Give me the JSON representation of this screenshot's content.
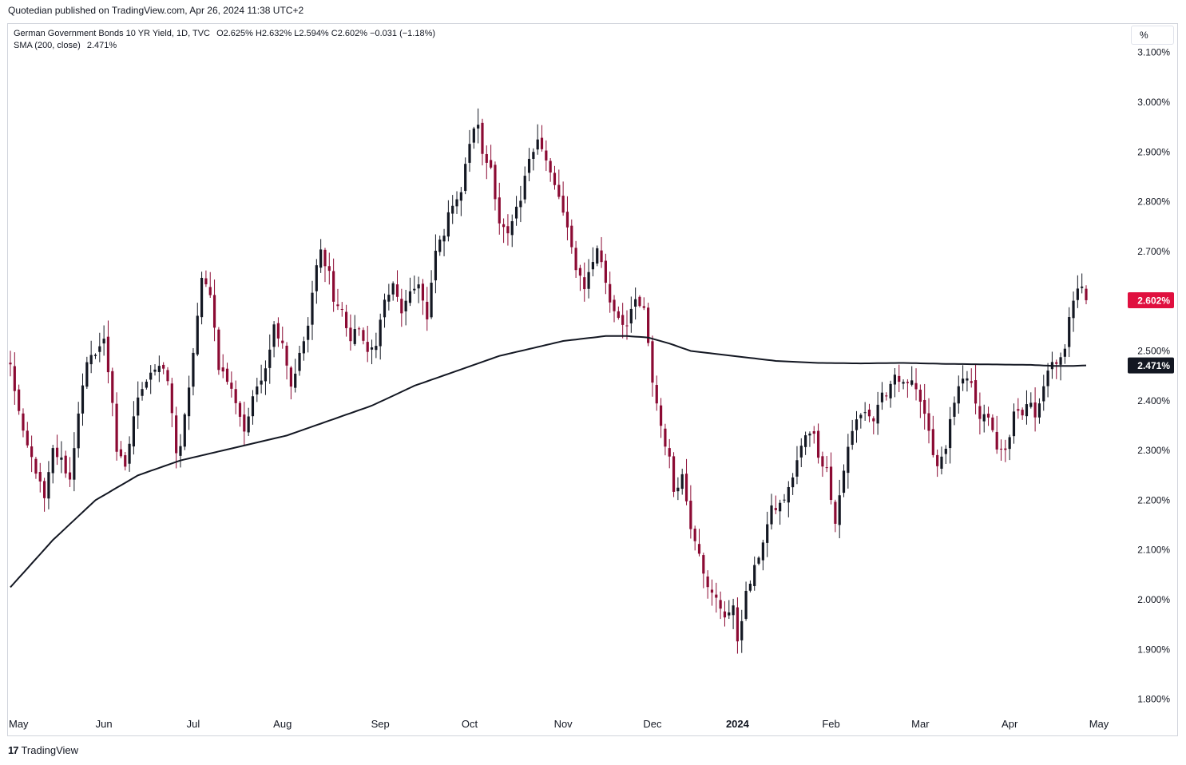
{
  "header": {
    "published_by": "Quotedian published on TradingView.com, Apr 26, 2024 11:38 UTC+2"
  },
  "legend": {
    "symbol": "German Government Bonds 10 YR Yield, 1D, TVC",
    "ohlc": "O2.625% H2.632% L2.594% C2.602% −0.031 (−1.18%)",
    "indicator": "SMA (200, close)",
    "indicator_value": "2.471%"
  },
  "unit_label": "%",
  "footer": {
    "logo_text": "TradingView",
    "logo_mark": "17"
  },
  "colors": {
    "candle_down": "#8b0a33",
    "candle_up": "#131722",
    "sma": "#131722",
    "last_price_badge": "#e0103f",
    "sma_badge": "#131722"
  },
  "chart_data": {
    "type": "candlestick",
    "title": "German Government Bonds 10 YR Yield, 1D, TVC",
    "ylabel": "%",
    "ylim": [
      1.75,
      3.1
    ],
    "y_ticks": [
      "3.100%",
      "3.000%",
      "2.900%",
      "2.800%",
      "2.700%",
      "2.500%",
      "2.400%",
      "2.300%",
      "2.200%",
      "2.100%",
      "2.000%",
      "1.900%",
      "1.800%"
    ],
    "y_tick_values": [
      3.1,
      3.0,
      2.9,
      2.8,
      2.7,
      2.5,
      2.4,
      2.3,
      2.2,
      2.1,
      2.0,
      1.9,
      1.8
    ],
    "x_ticks": [
      {
        "label": "May",
        "bar": 0
      },
      {
        "label": "Jun",
        "bar": 22
      },
      {
        "label": "Jul",
        "bar": 43
      },
      {
        "label": "Aug",
        "bar": 64
      },
      {
        "label": "Sep",
        "bar": 87
      },
      {
        "label": "Oct",
        "bar": 108
      },
      {
        "label": "Nov",
        "bar": 130
      },
      {
        "label": "Dec",
        "bar": 151
      },
      {
        "label": "2024",
        "bar": 171,
        "bold": true
      },
      {
        "label": "Feb",
        "bar": 193
      },
      {
        "label": "Mar",
        "bar": 214
      },
      {
        "label": "Apr",
        "bar": 235
      },
      {
        "label": "May",
        "bar": 256
      }
    ],
    "close_anchors": [
      [
        0,
        2.47
      ],
      [
        3,
        2.33
      ],
      [
        6,
        2.26
      ],
      [
        8,
        2.2
      ],
      [
        10,
        2.3
      ],
      [
        12,
        2.28
      ],
      [
        14,
        2.24
      ],
      [
        16,
        2.38
      ],
      [
        18,
        2.47
      ],
      [
        20,
        2.5
      ],
      [
        22,
        2.52
      ],
      [
        24,
        2.4
      ],
      [
        25,
        2.3
      ],
      [
        27,
        2.26
      ],
      [
        29,
        2.37
      ],
      [
        31,
        2.43
      ],
      [
        33,
        2.46
      ],
      [
        35,
        2.47
      ],
      [
        37,
        2.44
      ],
      [
        39,
        2.3
      ],
      [
        40,
        2.31
      ],
      [
        42,
        2.42
      ],
      [
        43,
        2.5
      ],
      [
        45,
        2.64
      ],
      [
        47,
        2.62
      ],
      [
        49,
        2.47
      ],
      [
        51,
        2.44
      ],
      [
        53,
        2.4
      ],
      [
        55,
        2.34
      ],
      [
        57,
        2.4
      ],
      [
        58,
        2.43
      ],
      [
        60,
        2.47
      ],
      [
        62,
        2.55
      ],
      [
        64,
        2.52
      ],
      [
        66,
        2.43
      ],
      [
        68,
        2.49
      ],
      [
        70,
        2.55
      ],
      [
        72,
        2.67
      ],
      [
        73,
        2.7
      ],
      [
        75,
        2.66
      ],
      [
        76,
        2.6
      ],
      [
        78,
        2.58
      ],
      [
        80,
        2.52
      ],
      [
        82,
        2.55
      ],
      [
        84,
        2.49
      ],
      [
        86,
        2.52
      ],
      [
        88,
        2.6
      ],
      [
        90,
        2.63
      ],
      [
        92,
        2.58
      ],
      [
        94,
        2.61
      ],
      [
        96,
        2.64
      ],
      [
        98,
        2.56
      ],
      [
        100,
        2.7
      ],
      [
        102,
        2.74
      ],
      [
        104,
        2.8
      ],
      [
        106,
        2.82
      ],
      [
        108,
        2.92
      ],
      [
        110,
        2.96
      ],
      [
        111,
        2.89
      ],
      [
        113,
        2.87
      ],
      [
        115,
        2.76
      ],
      [
        117,
        2.73
      ],
      [
        119,
        2.78
      ],
      [
        120,
        2.8
      ],
      [
        122,
        2.89
      ],
      [
        124,
        2.93
      ],
      [
        126,
        2.88
      ],
      [
        128,
        2.83
      ],
      [
        129,
        2.81
      ],
      [
        131,
        2.74
      ],
      [
        133,
        2.67
      ],
      [
        135,
        2.63
      ],
      [
        137,
        2.68
      ],
      [
        138,
        2.71
      ],
      [
        140,
        2.64
      ],
      [
        141,
        2.6
      ],
      [
        143,
        2.57
      ],
      [
        145,
        2.55
      ],
      [
        147,
        2.6
      ],
      [
        149,
        2.58
      ],
      [
        150,
        2.51
      ],
      [
        151,
        2.44
      ],
      [
        153,
        2.35
      ],
      [
        155,
        2.28
      ],
      [
        156,
        2.22
      ],
      [
        158,
        2.25
      ],
      [
        160,
        2.15
      ],
      [
        162,
        2.1
      ],
      [
        164,
        2.02
      ],
      [
        166,
        2.0
      ],
      [
        168,
        1.97
      ],
      [
        170,
        1.98
      ],
      [
        171,
        1.92
      ],
      [
        173,
        2.01
      ],
      [
        175,
        2.06
      ],
      [
        177,
        2.12
      ],
      [
        179,
        2.18
      ],
      [
        181,
        2.19
      ],
      [
        183,
        2.22
      ],
      [
        185,
        2.28
      ],
      [
        187,
        2.33
      ],
      [
        189,
        2.33
      ],
      [
        190,
        2.29
      ],
      [
        192,
        2.26
      ],
      [
        194,
        2.16
      ],
      [
        195,
        2.21
      ],
      [
        197,
        2.31
      ],
      [
        199,
        2.36
      ],
      [
        201,
        2.38
      ],
      [
        203,
        2.36
      ],
      [
        205,
        2.42
      ],
      [
        206,
        2.4
      ],
      [
        208,
        2.45
      ],
      [
        210,
        2.43
      ],
      [
        212,
        2.45
      ],
      [
        214,
        2.4
      ],
      [
        216,
        2.33
      ],
      [
        218,
        2.27
      ],
      [
        220,
        2.31
      ],
      [
        222,
        2.4
      ],
      [
        224,
        2.44
      ],
      [
        226,
        2.43
      ],
      [
        228,
        2.36
      ],
      [
        230,
        2.37
      ],
      [
        232,
        2.3
      ],
      [
        234,
        2.3
      ],
      [
        236,
        2.37
      ],
      [
        238,
        2.38
      ],
      [
        240,
        2.4
      ],
      [
        241,
        2.36
      ],
      [
        243,
        2.42
      ],
      [
        244,
        2.46
      ],
      [
        246,
        2.48
      ],
      [
        248,
        2.51
      ],
      [
        249,
        2.56
      ],
      [
        251,
        2.63
      ],
      [
        252,
        2.633
      ],
      [
        253,
        2.602
      ]
    ],
    "last_candle": {
      "open": 2.625,
      "high": 2.632,
      "low": 2.594,
      "close": 2.602,
      "change": -0.031,
      "change_pct": -1.18
    },
    "sma": {
      "name": "SMA (200, close)",
      "anchors": [
        [
          0,
          2.025
        ],
        [
          10,
          2.12
        ],
        [
          20,
          2.2
        ],
        [
          30,
          2.25
        ],
        [
          40,
          2.28
        ],
        [
          45,
          2.29
        ],
        [
          55,
          2.31
        ],
        [
          65,
          2.33
        ],
        [
          75,
          2.36
        ],
        [
          85,
          2.39
        ],
        [
          95,
          2.43
        ],
        [
          105,
          2.46
        ],
        [
          115,
          2.49
        ],
        [
          120,
          2.5
        ],
        [
          130,
          2.52
        ],
        [
          140,
          2.53
        ],
        [
          145,
          2.53
        ],
        [
          150,
          2.527
        ],
        [
          155,
          2.515
        ],
        [
          160,
          2.5
        ],
        [
          170,
          2.49
        ],
        [
          180,
          2.48
        ],
        [
          190,
          2.476
        ],
        [
          200,
          2.475
        ],
        [
          210,
          2.476
        ],
        [
          220,
          2.474
        ],
        [
          230,
          2.473
        ],
        [
          240,
          2.472
        ],
        [
          245,
          2.47
        ],
        [
          250,
          2.47
        ],
        [
          253,
          2.471
        ]
      ],
      "last_value": 2.471
    },
    "badges": {
      "last_price": "2.602%",
      "sma_value": "2.471%"
    }
  }
}
